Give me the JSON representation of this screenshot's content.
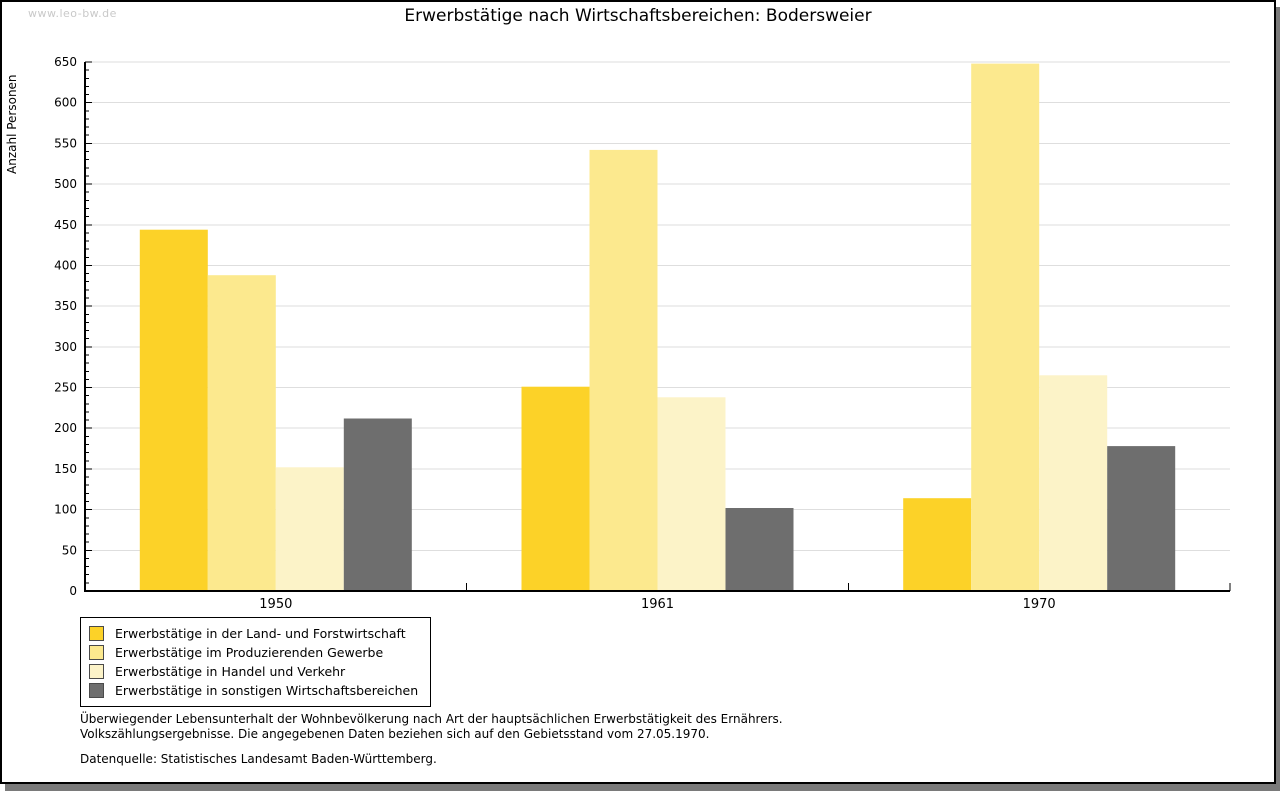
{
  "watermark": "www.leo-bw.de",
  "chart_data": {
    "type": "bar",
    "title": "Erwerbstätige nach Wirtschaftsbereichen: Bodersweier",
    "ylabel": "Anzahl Personen",
    "xlabel": "",
    "categories": [
      "1950",
      "1961",
      "1970"
    ],
    "series": [
      {
        "name": "Erwerbstätige in der Land- und Forstwirtschaft",
        "color": "#FCD228",
        "values": [
          444,
          251,
          114
        ]
      },
      {
        "name": "Erwerbstätige im Produzierenden Gewerbe",
        "color": "#FCE98E",
        "values": [
          388,
          542,
          648
        ]
      },
      {
        "name": "Erwerbstätige in Handel und Verkehr",
        "color": "#FCF3C8",
        "values": [
          152,
          238,
          265
        ]
      },
      {
        "name": "Erwerbstätige in sonstigen Wirtschaftsbereichen",
        "color": "#6E6E6E",
        "values": [
          212,
          102,
          178
        ]
      }
    ],
    "ylim": [
      0,
      650
    ],
    "ytick_step": 50,
    "ytick_minor_step": 10,
    "grid": true,
    "gridline_color": "#DEDEDE",
    "axis_color": "#000000",
    "legend_position": "bottom-left"
  },
  "footnotes": [
    "Überwiegender Lebensunterhalt der Wohnbevölkerung nach Art der hauptsächlichen Erwerbstätigkeit des Ernährers.",
    "Volkszählungsergebnisse. Die angegebenen Daten beziehen sich auf den Gebietsstand vom 27.05.1970."
  ],
  "source": "Datenquelle: Statistisches Landesamt Baden-Württemberg."
}
